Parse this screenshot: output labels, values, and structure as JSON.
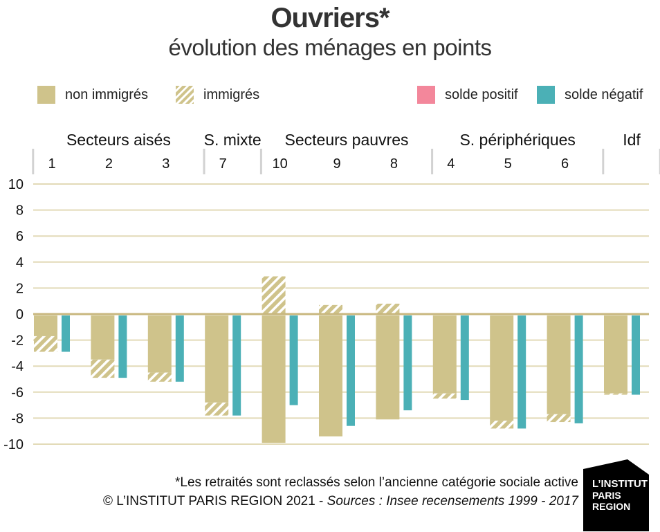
{
  "title": "Ouvriers*",
  "subtitle": "évolution des ménages en points",
  "legend": {
    "non_immigres": "non immigrés",
    "immigres": "immigrés",
    "solde_positif": "solde positif",
    "solde_negatif": "solde négatif"
  },
  "colors": {
    "non_immigres": "#cfc38b",
    "solde_positif": "#f3879b",
    "solde_negatif": "#4bb0b6",
    "zero_line": "#c8b77e",
    "grid": "#e2dab7"
  },
  "footer": {
    "note": "*Les retraités sont reclassés selon l’ancienne catégorie sociale active",
    "copyright": "© L’INSTITUT PARIS REGION 2021 - ",
    "sources": "Sources : Insee recensements 1999 - 2017"
  },
  "logo": {
    "line1": "L’INSTITUT",
    "line2": "PARIS",
    "line3": "REGION"
  },
  "chart_data": {
    "type": "bar",
    "ylim": [
      -10,
      10
    ],
    "yticks": [
      10,
      8,
      6,
      4,
      2,
      0,
      -2,
      -4,
      -6,
      -8,
      -10
    ],
    "groups": [
      {
        "label": "Secteurs aisés",
        "categories": [
          "1",
          "2",
          "3"
        ]
      },
      {
        "label": "S. mixte",
        "categories": [
          "7"
        ]
      },
      {
        "label": "Secteurs pauvres",
        "categories": [
          "10",
          "9",
          "8"
        ]
      },
      {
        "label": "S. périphériques",
        "categories": [
          "4",
          "5",
          "6"
        ]
      },
      {
        "label": "Idf",
        "categories": [
          ""
        ]
      }
    ],
    "categories": [
      "1",
      "2",
      "3",
      "7",
      "10",
      "9",
      "8",
      "4",
      "5",
      "6",
      ""
    ],
    "series": [
      {
        "name": "non immigrés",
        "values": [
          -1.7,
          -3.5,
          -4.5,
          -6.8,
          -9.9,
          -9.4,
          -8.1,
          -6.1,
          -8.2,
          -7.7,
          -6.1
        ]
      },
      {
        "name": "immigrés",
        "values": [
          -1.2,
          -1.4,
          -0.7,
          -1.0,
          2.9,
          0.7,
          0.8,
          -0.4,
          -0.6,
          -0.6,
          -0.1
        ]
      },
      {
        "name": "solde négatif",
        "values": [
          -2.9,
          -4.9,
          -5.2,
          -7.8,
          -7.0,
          -8.6,
          -7.4,
          -6.6,
          -8.8,
          -8.4,
          -6.2
        ]
      }
    ]
  }
}
